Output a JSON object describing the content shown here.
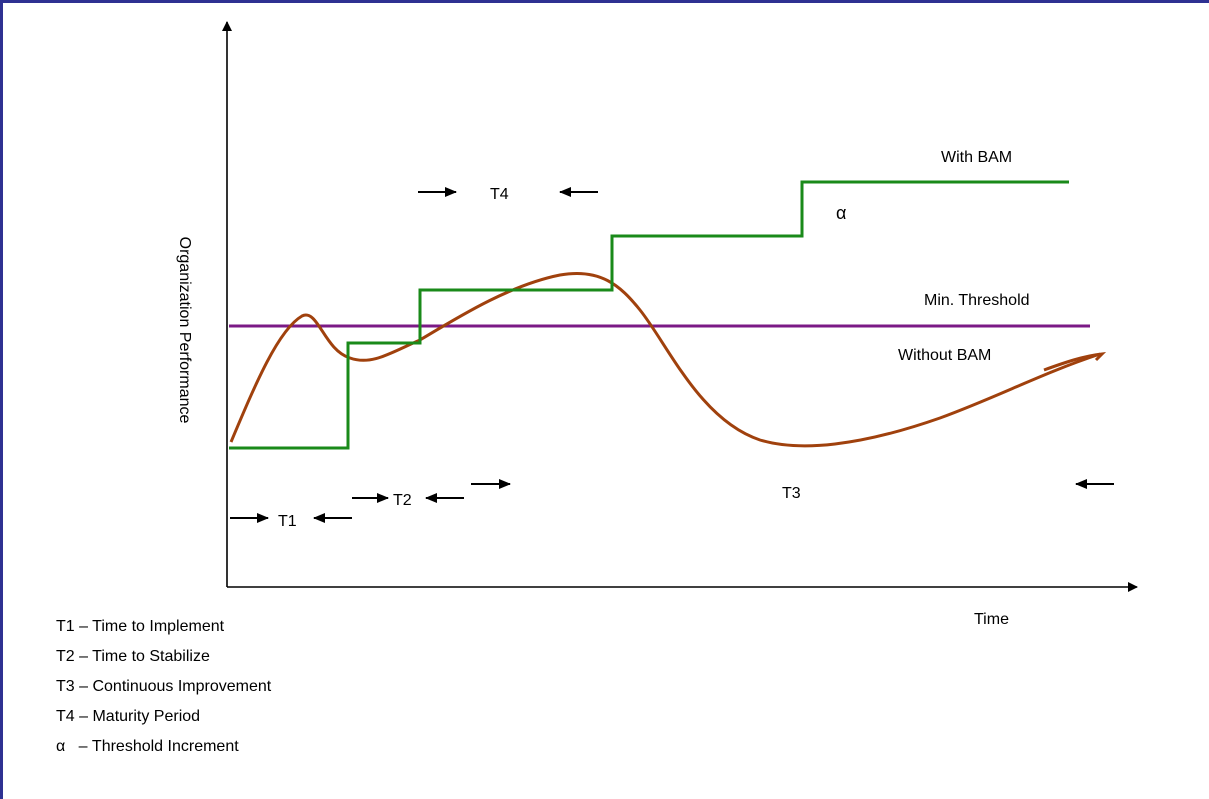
{
  "axes": {
    "y_label": "Organization Performance",
    "x_label": "Time"
  },
  "series": {
    "with_bam": {
      "label": "With BAM",
      "color": "#1a8a1a"
    },
    "without_bam": {
      "label": "Without BAM",
      "color": "#a0410d"
    },
    "threshold": {
      "label": "Min. Threshold",
      "color": "#7b1a86"
    }
  },
  "intervals": {
    "t1": "T1",
    "t2": "T2",
    "t3": "T3",
    "t4": "T4",
    "alpha": "α"
  },
  "legend": [
    {
      "key": "T1",
      "text": "T1 – Time to Implement"
    },
    {
      "key": "T2",
      "text": "T2 – Time to Stabilize"
    },
    {
      "key": "T3",
      "text": "T3 – Continuous Improvement"
    },
    {
      "key": "T4",
      "text": "T4 – Maturity Period"
    },
    {
      "key": "alpha",
      "text": "α   – Threshold Increment"
    }
  ],
  "colors": {
    "frame": "#2e3192",
    "axis": "#000000"
  }
}
